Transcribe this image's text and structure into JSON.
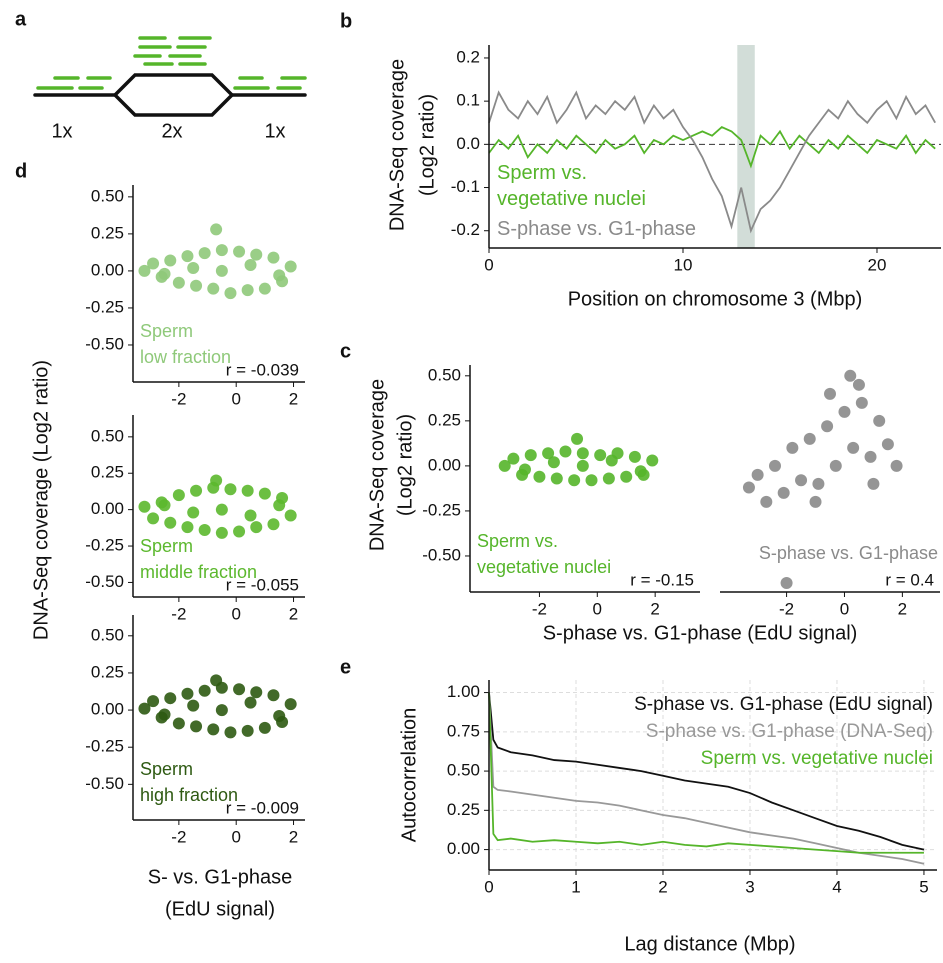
{
  "panel_a": {
    "label": "a",
    "copies": [
      "1x",
      "2x",
      "1x"
    ]
  },
  "chart_data": [
    {
      "type": "line",
      "panel": "b",
      "ylabel": [
        "DNA-Seq coverage",
        "(Log2 ratio)"
      ],
      "xlabel": [
        "Position on chromosome 3 (Mbp)"
      ],
      "x": [
        0,
        0.5,
        1,
        1.5,
        2,
        2.5,
        3,
        3.5,
        4,
        4.5,
        5,
        5.5,
        6,
        6.5,
        7,
        7.5,
        8,
        8.5,
        9,
        9.5,
        10,
        10.5,
        11,
        11.5,
        12,
        12.5,
        13,
        13.5,
        14,
        14.5,
        15,
        15.5,
        16,
        16.5,
        17,
        17.5,
        18,
        18.5,
        19,
        19.5,
        20,
        20.5,
        21,
        21.5,
        22,
        22.5,
        23
      ],
      "series": [
        {
          "name": "Sperm vs. vegetative nuclei",
          "color": "#55b52a",
          "values": [
            -0.02,
            0.01,
            -0.01,
            0.02,
            -0.03,
            0.0,
            -0.02,
            0.01,
            -0.01,
            0.02,
            0.0,
            -0.02,
            0.01,
            -0.01,
            0.0,
            0.02,
            -0.02,
            0.01,
            0.0,
            0.02,
            0.01,
            0.02,
            0.03,
            0.02,
            0.04,
            0.03,
            0.01,
            -0.05,
            0.02,
            0.0,
            0.03,
            -0.01,
            0.02,
            0.0,
            -0.02,
            0.01,
            -0.01,
            0.02,
            0.0,
            -0.02,
            0.01,
            0.0,
            -0.01,
            0.02,
            -0.02,
            0.01,
            -0.01
          ]
        },
        {
          "name": "S-phase vs. G1-phase",
          "color": "#8a8a8a",
          "values": [
            0.05,
            0.12,
            0.08,
            0.06,
            0.1,
            0.07,
            0.11,
            0.05,
            0.08,
            0.12,
            0.06,
            0.09,
            0.07,
            0.1,
            0.08,
            0.11,
            0.05,
            0.09,
            0.06,
            0.08,
            0.04,
            0.01,
            -0.03,
            -0.08,
            -0.12,
            -0.19,
            -0.1,
            -0.2,
            -0.15,
            -0.13,
            -0.1,
            -0.06,
            -0.02,
            0.02,
            0.05,
            0.08,
            0.06,
            0.1,
            0.07,
            0.05,
            0.08,
            0.1,
            0.06,
            0.11,
            0.07,
            0.09,
            0.05
          ]
        }
      ],
      "highlight_x": [
        12.8,
        13.7
      ],
      "reference_y": 0,
      "xlim": [
        0,
        23.3
      ],
      "ylim": [
        -0.24,
        0.23
      ],
      "xticks": [
        0,
        10,
        20
      ],
      "yticks": [
        -0.2,
        -0.1,
        {
          "value": 0,
          "label": "0.0"
        },
        0.1,
        0.2
      ]
    },
    {
      "type": "scatter",
      "panel": "c",
      "color": "#55b52a",
      "ylabel": [
        "DNA-Seq coverage",
        "(Log2 ratio)"
      ],
      "xlabel": [
        "S-phase vs. G1-phase (EdU signal)"
      ],
      "annotation": [
        "Sperm vs.",
        "vegetative nuclei"
      ],
      "r_label": "r = -0.15",
      "x": [
        -3.2,
        -2.9,
        -2.6,
        -2.3,
        -2.0,
        -1.7,
        -1.4,
        -1.1,
        -0.8,
        -0.5,
        -0.2,
        0.1,
        0.4,
        0.7,
        1.0,
        1.3,
        1.6,
        1.9,
        -2.5,
        -1.5,
        -0.5,
        0.5,
        1.5,
        -0.7
      ],
      "y": [
        0.0,
        0.04,
        -0.05,
        0.06,
        -0.06,
        0.07,
        -0.07,
        0.08,
        -0.08,
        0.07,
        -0.08,
        0.06,
        -0.07,
        0.07,
        -0.06,
        0.05,
        -0.05,
        0.03,
        -0.02,
        0.02,
        0.0,
        0.03,
        -0.03,
        0.15
      ],
      "xlim": [
        -4.4,
        3.55
      ],
      "ylim": [
        -0.7,
        0.56
      ],
      "xticks": [
        -2,
        0,
        2
      ],
      "yticks": [
        {
          "value": -0.5,
          "label": "-0.50"
        },
        -0.25,
        {
          "value": 0,
          "label": "0.00"
        },
        0.25,
        {
          "value": 0.5,
          "label": "0.50"
        }
      ]
    },
    {
      "type": "scatter",
      "color": "#8a8a8a",
      "annotation": [
        "S-phase vs. G1-phase"
      ],
      "r_label": "r = 0.4",
      "x": [
        -3.3,
        -3.0,
        -2.7,
        -2.4,
        -2.1,
        -1.8,
        -1.5,
        -1.2,
        -0.9,
        -0.6,
        -0.3,
        0.0,
        0.3,
        0.6,
        0.9,
        1.2,
        1.5,
        1.8,
        -1.0,
        0.5,
        1.0,
        -0.5,
        -2.0,
        0.2
      ],
      "y": [
        -0.12,
        -0.05,
        -0.2,
        0.0,
        -0.15,
        0.1,
        -0.08,
        0.15,
        -0.1,
        0.22,
        0.0,
        0.3,
        0.1,
        0.35,
        0.05,
        0.25,
        0.12,
        0.0,
        -0.2,
        0.45,
        -0.1,
        0.4,
        -0.65,
        0.5
      ],
      "xlim": [
        -4.3,
        3.3
      ],
      "ylim": [
        -0.7,
        0.56
      ],
      "xticks": [
        -2,
        0,
        2
      ]
    },
    {
      "type": "scatter",
      "panel": "d",
      "color": "#8fc97a",
      "ylabel": [
        "DNA-Seq coverage (Log2 ratio)"
      ],
      "xlabel": [
        "S- vs. G1-phase",
        "(EdU signal)"
      ],
      "annotation": [
        "Sperm",
        "low fraction"
      ],
      "r_label": "r = -0.039",
      "x": [
        -3.2,
        -2.9,
        -2.6,
        -2.3,
        -2.0,
        -1.7,
        -1.4,
        -1.1,
        -0.8,
        -0.5,
        -0.2,
        0.1,
        0.4,
        0.7,
        1.0,
        1.3,
        1.6,
        1.9,
        -2.5,
        -1.5,
        -0.5,
        0.5,
        1.5,
        -0.7
      ],
      "y": [
        0.0,
        0.05,
        -0.04,
        0.07,
        -0.08,
        0.1,
        -0.1,
        0.12,
        -0.12,
        0.14,
        -0.15,
        0.13,
        -0.13,
        0.11,
        -0.12,
        0.09,
        -0.07,
        0.03,
        -0.02,
        0.02,
        0.0,
        0.04,
        -0.03,
        0.28
      ],
      "xlim": [
        -3.6,
        2.4
      ],
      "ylim": [
        -0.75,
        0.58
      ],
      "xticks": [
        -2,
        0,
        2
      ],
      "yticks": [
        {
          "value": -0.5,
          "label": "-0.50"
        },
        -0.25,
        {
          "value": 0,
          "label": "0.00"
        },
        0.25,
        {
          "value": 0.5,
          "label": "0.50"
        }
      ]
    },
    {
      "type": "scatter",
      "color": "#5cb82e",
      "annotation": [
        "Sperm",
        "middle fraction"
      ],
      "r_label": "r = -0.055",
      "x": [
        -3.2,
        -2.9,
        -2.6,
        -2.3,
        -2.0,
        -1.7,
        -1.4,
        -1.1,
        -0.8,
        -0.5,
        -0.2,
        0.1,
        0.4,
        0.7,
        1.0,
        1.3,
        1.6,
        1.9,
        -2.5,
        -1.5,
        -0.5,
        0.5,
        1.5,
        -0.7
      ],
      "y": [
        0.02,
        -0.06,
        0.05,
        -0.09,
        0.1,
        -0.12,
        0.13,
        -0.14,
        0.15,
        -0.16,
        0.14,
        -0.15,
        0.13,
        -0.12,
        0.11,
        -0.1,
        0.08,
        -0.04,
        0.03,
        -0.02,
        0.0,
        -0.04,
        0.03,
        0.2
      ],
      "xlim": [
        -3.6,
        2.4
      ],
      "ylim": [
        -0.6,
        0.65
      ],
      "xticks": [
        -2,
        0,
        2
      ],
      "yticks": [
        {
          "value": -0.5,
          "label": "-0.50"
        },
        -0.25,
        {
          "value": 0,
          "label": "0.00"
        },
        0.25,
        {
          "value": 0.5,
          "label": "0.50"
        }
      ]
    },
    {
      "type": "scatter",
      "color": "#2e5a12",
      "annotation": [
        "Sperm",
        "high fraction"
      ],
      "r_label": "r = -0.009",
      "x": [
        -3.2,
        -2.9,
        -2.6,
        -2.3,
        -2.0,
        -1.7,
        -1.4,
        -1.1,
        -0.8,
        -0.5,
        -0.2,
        0.1,
        0.4,
        0.7,
        1.0,
        1.3,
        1.6,
        1.9,
        -2.5,
        -1.5,
        -0.5,
        0.5,
        1.5,
        -0.7
      ],
      "y": [
        0.01,
        0.06,
        -0.05,
        0.08,
        -0.09,
        0.11,
        -0.11,
        0.13,
        -0.13,
        0.15,
        -0.15,
        0.14,
        -0.14,
        0.12,
        -0.12,
        0.1,
        -0.08,
        0.04,
        -0.03,
        0.03,
        0.0,
        0.05,
        -0.04,
        0.2
      ],
      "xlim": [
        -3.6,
        2.4
      ],
      "ylim": [
        -0.74,
        0.64
      ],
      "xticks": [
        -2,
        0,
        2
      ],
      "yticks": [
        {
          "value": -0.5,
          "label": "-0.50"
        },
        -0.25,
        {
          "value": 0,
          "label": "0.00"
        },
        0.25,
        {
          "value": 0.5,
          "label": "0.50"
        }
      ]
    },
    {
      "type": "line",
      "panel": "e",
      "grid": true,
      "ylabel": [
        "Autocorrelation"
      ],
      "xlabel": [
        "Lag distance (Mbp)"
      ],
      "x": [
        0,
        0.05,
        0.1,
        0.25,
        0.5,
        0.75,
        1,
        1.25,
        1.5,
        1.75,
        2,
        2.25,
        2.5,
        2.75,
        3,
        3.25,
        3.5,
        3.75,
        4,
        4.25,
        4.5,
        4.75,
        5
      ],
      "series": [
        {
          "name": "S-phase vs. G1-phase (EdU signal)",
          "color": "#111111",
          "values": [
            1.0,
            0.7,
            0.65,
            0.62,
            0.6,
            0.57,
            0.56,
            0.54,
            0.52,
            0.5,
            0.47,
            0.44,
            0.42,
            0.4,
            0.36,
            0.3,
            0.25,
            0.2,
            0.15,
            0.12,
            0.08,
            0.03,
            0.0
          ]
        },
        {
          "name": "S-phase vs. G1-phase (DNA-Seq)",
          "color": "#999999",
          "values": [
            1.0,
            0.4,
            0.38,
            0.37,
            0.35,
            0.33,
            0.31,
            0.3,
            0.28,
            0.25,
            0.22,
            0.2,
            0.17,
            0.14,
            0.11,
            0.09,
            0.07,
            0.04,
            0.01,
            -0.02,
            -0.04,
            -0.06,
            -0.09
          ]
        },
        {
          "name": "Sperm vs. vegetative nuclei",
          "color": "#55b52a",
          "values": [
            1.0,
            0.1,
            0.06,
            0.07,
            0.05,
            0.06,
            0.05,
            0.04,
            0.05,
            0.03,
            0.05,
            0.03,
            0.02,
            0.04,
            0.03,
            0.02,
            0.01,
            0.0,
            -0.01,
            -0.02,
            -0.02,
            -0.02,
            -0.02
          ]
        }
      ],
      "xlim": [
        0,
        5.15
      ],
      "ylim": [
        -0.13,
        1.08
      ],
      "xticks": [
        0,
        1,
        2,
        3,
        4,
        5
      ],
      "yticks": [
        {
          "value": 0,
          "label": "0.00"
        },
        0.25,
        {
          "value": 0.5,
          "label": "0.50"
        },
        0.75,
        {
          "value": 1,
          "label": "1.00"
        }
      ]
    }
  ]
}
